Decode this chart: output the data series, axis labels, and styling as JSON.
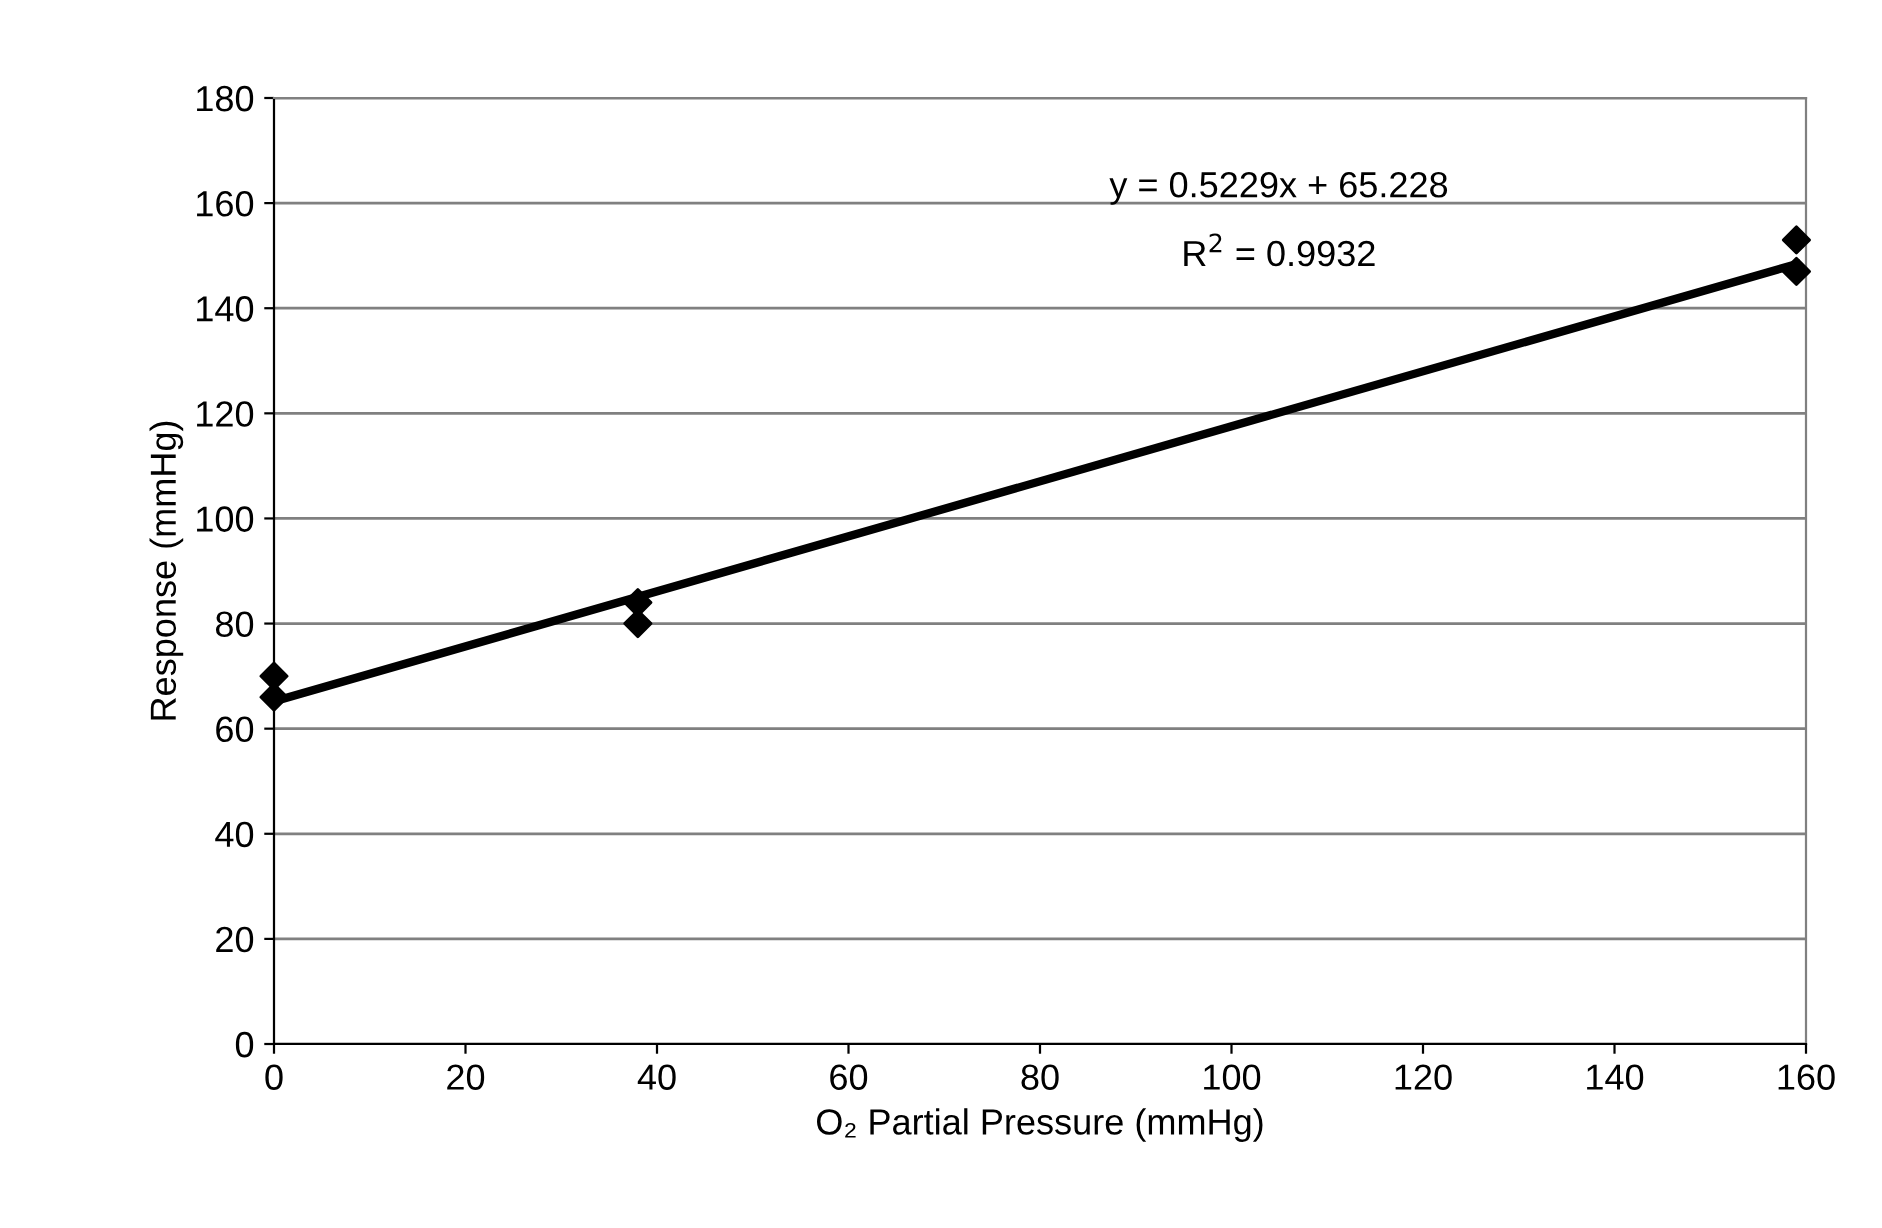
{
  "chart_data": {
    "type": "scatter",
    "xlabel": "O₂ Partial Pressure (mmHg)",
    "ylabel": "Response (mmHg)",
    "series": [
      {
        "color": "#000000",
        "marker": "diamond",
        "x": [
          0,
          0,
          38,
          38,
          159,
          159
        ],
        "values": [
          70,
          66,
          84,
          80,
          153,
          147
        ]
      },
      {
        "type": "line",
        "color": "#000000",
        "marker": "none",
        "x": [
          0,
          159
        ],
        "values": [
          65.2,
          148.4
        ]
      }
    ],
    "annotations": [
      "y = 0.5229x + 65.228",
      "R$^{2}$ = 0.9932"
    ],
    "xlim": [
      0,
      160
    ],
    "xticks": [
      0,
      20,
      40,
      60,
      80,
      100,
      120,
      140,
      160
    ],
    "ylim": [
      0,
      180
    ],
    "yticks": [
      0,
      20,
      40,
      60,
      80,
      100,
      120,
      140,
      160,
      180
    ],
    "grid": "y",
    "legend": false
  }
}
